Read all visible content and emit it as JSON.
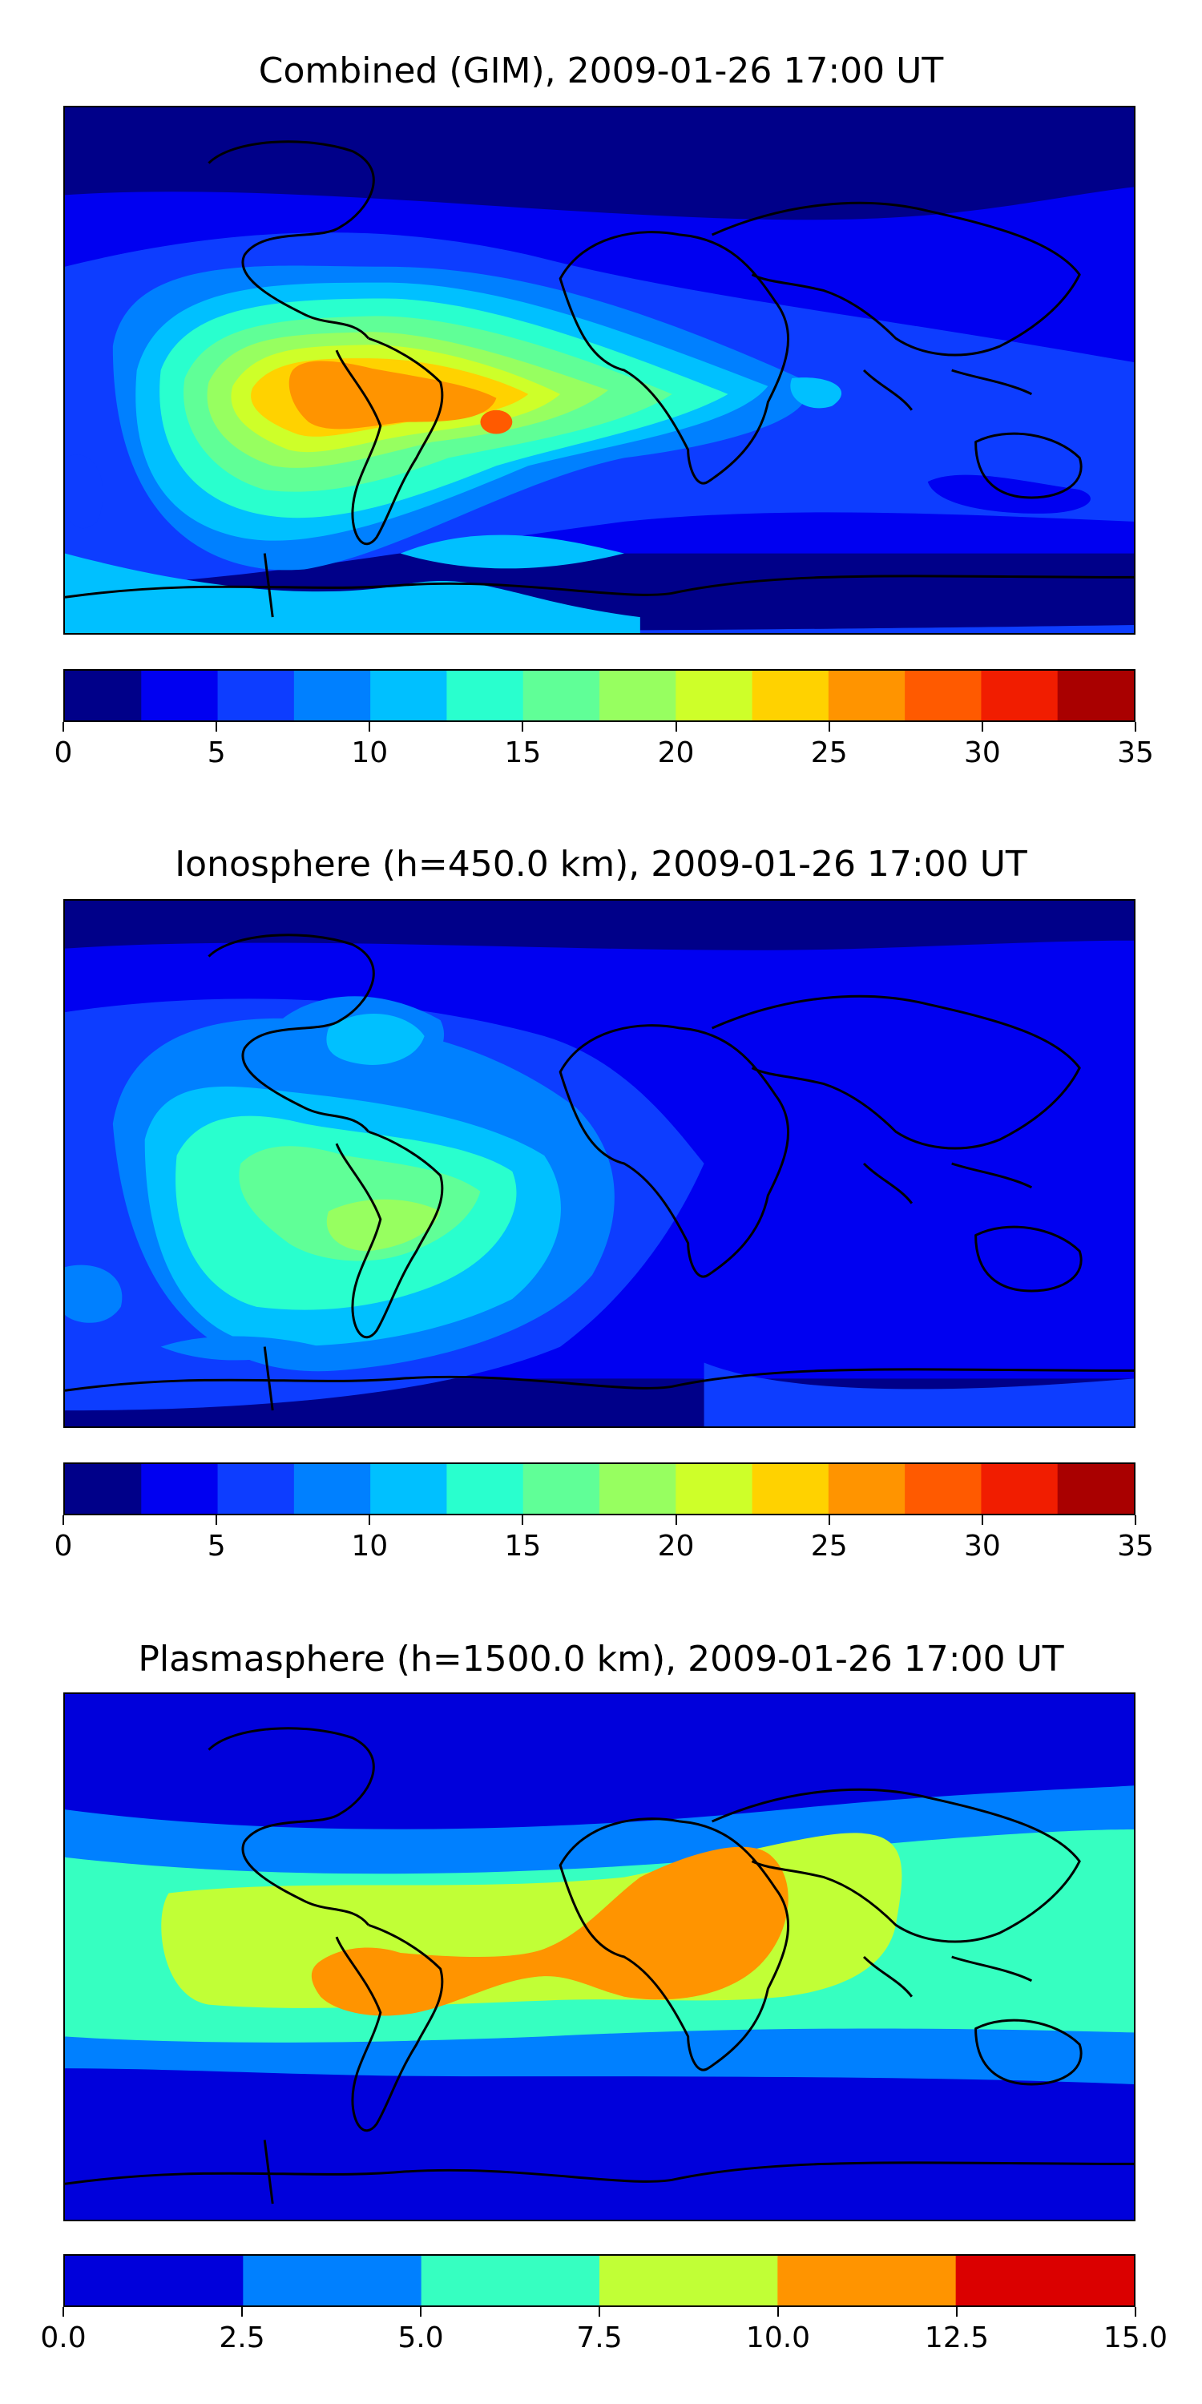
{
  "panels": [
    {
      "title": "Combined (GIM), 2009-01-26 17:00 UT",
      "colorbar": {
        "ticks": [
          "0",
          "5",
          "10",
          "15",
          "20",
          "25",
          "30",
          "35"
        ],
        "colors": [
          "#000089",
          "#0000f1",
          "#0d3dff",
          "#0080ff",
          "#00c0ff",
          "#29ffce",
          "#60ff97",
          "#97ff60",
          "#ceff29",
          "#ffd200",
          "#ff9400",
          "#ff5a00",
          "#f11d00",
          "#a90000"
        ]
      },
      "field_levels": {
        "background": "#000089",
        "north_band": "#0000f1",
        "mid_band": "#0d3dff",
        "south_ocean": "#00c0ff",
        "peak": "#ff5a00"
      }
    },
    {
      "title": "Ionosphere  (h=450.0 km), 2009-01-26 17:00 UT",
      "colorbar": {
        "ticks": [
          "0",
          "5",
          "10",
          "15",
          "20",
          "25",
          "30",
          "35"
        ],
        "colors": [
          "#000089",
          "#0000f1",
          "#0d3dff",
          "#0080ff",
          "#00c0ff",
          "#29ffce",
          "#60ff97",
          "#97ff60",
          "#ceff29",
          "#ffd200",
          "#ff9400",
          "#ff5a00",
          "#f11d00",
          "#a90000"
        ]
      },
      "field_levels": {
        "background": "#000089",
        "north_band": "#0000f1",
        "mid_band": "#0d3dff",
        "south_ocean": "#0080ff",
        "peak": "#97ff60"
      }
    },
    {
      "title": "Plasmasphere (h=1500.0 km), 2009-01-26 17:00 UT",
      "colorbar": {
        "ticks": [
          "0.0",
          "2.5",
          "5.0",
          "7.5",
          "10.0",
          "12.5",
          "15.0"
        ],
        "colors": [
          "#0000db",
          "#0080ff",
          "#36ffc1",
          "#c1ff36",
          "#ff9400",
          "#db0000"
        ]
      },
      "field_levels": {
        "background": "#0000db",
        "band2": "#0080ff",
        "band3": "#36ffc1",
        "band4": "#c1ff36",
        "peak": "#ff9400"
      }
    }
  ]
}
